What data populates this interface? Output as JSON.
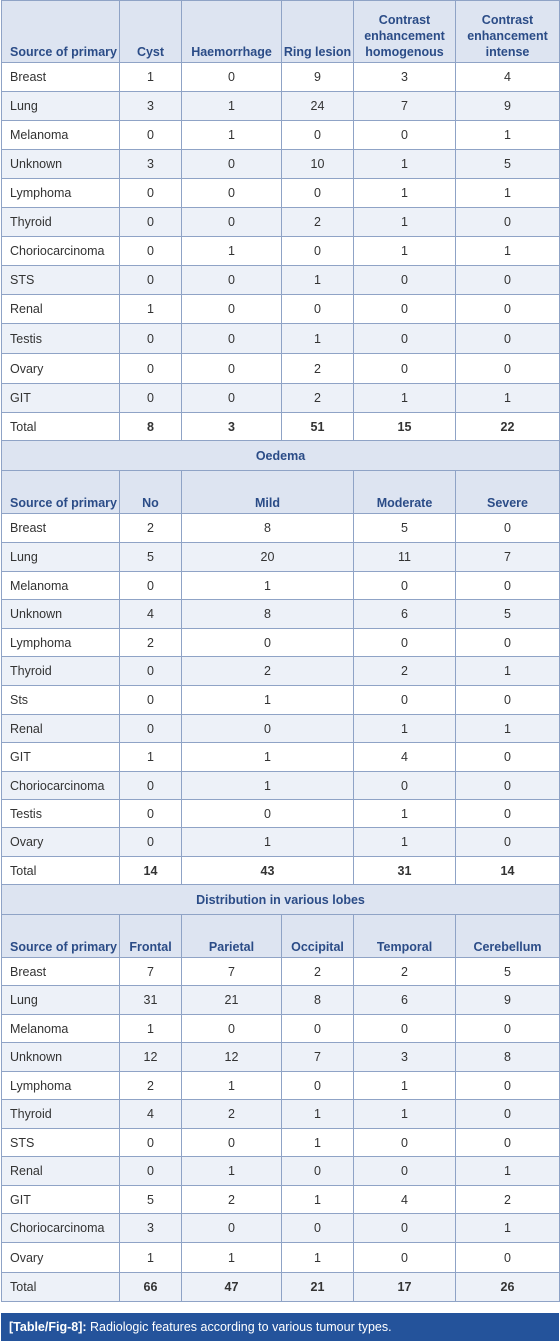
{
  "section1": {
    "headers": [
      "Source of primary",
      "Cyst",
      "Haemorrhage",
      "Ring lesion",
      "Contrast enhancement homogenous",
      "Contrast enhancement intense"
    ],
    "rows": [
      [
        "Breast",
        "1",
        "0",
        "9",
        "3",
        "4"
      ],
      [
        "Lung",
        "3",
        "1",
        "24",
        "7",
        "9"
      ],
      [
        "Melanoma",
        "0",
        "1",
        "0",
        "0",
        "1"
      ],
      [
        "Unknown",
        "3",
        "0",
        "10",
        "1",
        "5"
      ],
      [
        "Lymphoma",
        "0",
        "0",
        "0",
        "1",
        "1"
      ],
      [
        "Thyroid",
        "0",
        "0",
        "2",
        "1",
        "0"
      ],
      [
        "Choriocarcinoma",
        "0",
        "1",
        "0",
        "1",
        "1"
      ],
      [
        "STS",
        "0",
        "0",
        "1",
        "0",
        "0"
      ],
      [
        "Renal",
        "1",
        "0",
        "0",
        "0",
        "0"
      ],
      [
        "Testis",
        "0",
        "0",
        "1",
        "0",
        "0"
      ],
      [
        "Ovary",
        "0",
        "0",
        "2",
        "0",
        "0"
      ],
      [
        "GIT",
        "0",
        "0",
        "2",
        "1",
        "1"
      ],
      [
        "Total",
        "8",
        "3",
        "51",
        "15",
        "22"
      ]
    ]
  },
  "section2": {
    "title": "Oedema",
    "headers": [
      "Source of primary",
      "No",
      "Mild",
      "Moderate",
      "Severe"
    ],
    "rows": [
      [
        "Breast",
        "2",
        "8",
        "5",
        "0"
      ],
      [
        "Lung",
        "5",
        "20",
        "11",
        "7"
      ],
      [
        "Melanoma",
        "0",
        "1",
        "0",
        "0"
      ],
      [
        "Unknown",
        "4",
        "8",
        "6",
        "5"
      ],
      [
        "Lymphoma",
        "2",
        "0",
        "0",
        "0"
      ],
      [
        "Thyroid",
        "0",
        "2",
        "2",
        "1"
      ],
      [
        "Sts",
        "0",
        "1",
        "0",
        "0"
      ],
      [
        "Renal",
        "0",
        "0",
        "1",
        "1"
      ],
      [
        "GIT",
        "1",
        "1",
        "4",
        "0"
      ],
      [
        "Choriocarcinoma",
        "0",
        "1",
        "0",
        "0"
      ],
      [
        "Testis",
        "0",
        "0",
        "1",
        "0"
      ],
      [
        "Ovary",
        "0",
        "1",
        "1",
        "0"
      ],
      [
        "Total",
        "14",
        "43",
        "31",
        "14"
      ]
    ]
  },
  "section3": {
    "title": "Distribution in various lobes",
    "headers": [
      "Source of primary",
      "Frontal",
      "Parietal",
      "Occipital",
      "Temporal",
      "Cerebellum"
    ],
    "rows": [
      [
        "Breast",
        "7",
        "7",
        "2",
        "2",
        "5"
      ],
      [
        "Lung",
        "31",
        "21",
        "8",
        "6",
        "9"
      ],
      [
        "Melanoma",
        "1",
        "0",
        "0",
        "0",
        "0"
      ],
      [
        "Unknown",
        "12",
        "12",
        "7",
        "3",
        "8"
      ],
      [
        "Lymphoma",
        "2",
        "1",
        "0",
        "1",
        "0"
      ],
      [
        "Thyroid",
        "4",
        "2",
        "1",
        "1",
        "0"
      ],
      [
        "STS",
        "0",
        "0",
        "1",
        "0",
        "0"
      ],
      [
        "Renal",
        "0",
        "1",
        "0",
        "0",
        "1"
      ],
      [
        "GIT",
        "5",
        "2",
        "1",
        "4",
        "2"
      ],
      [
        "Choriocarcinoma",
        "3",
        "0",
        "0",
        "0",
        "1"
      ],
      [
        "Ovary",
        "1",
        "1",
        "1",
        "0",
        "0"
      ],
      [
        "Total",
        "66",
        "47",
        "21",
        "17",
        "26"
      ]
    ]
  },
  "caption": {
    "label": "[Table/Fig-8]:",
    "text": "Radiologic features according to various tumour types."
  }
}
